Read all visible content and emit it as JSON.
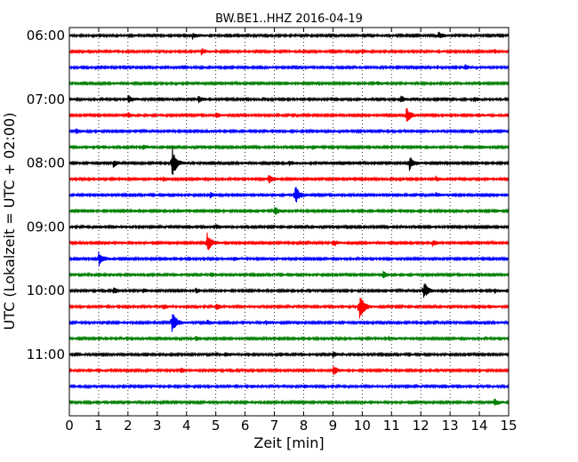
{
  "chart_data": {
    "type": "line",
    "title": "BW.BE1..HHZ 2016-04-19",
    "xlabel": "Zeit  [min]",
    "ylabel": "UTC (Lokalzeit = UTC + 02:00)",
    "xlim": [
      0,
      15
    ],
    "x_ticks": [
      "0",
      "1",
      "2",
      "3",
      "4",
      "5",
      "6",
      "7",
      "8",
      "9",
      "10",
      "11",
      "12",
      "13",
      "14",
      "15"
    ],
    "y_tick_labels": [
      {
        "label": "06:00",
        "trace_index": 0
      },
      {
        "label": "07:00",
        "trace_index": 4
      },
      {
        "label": "08:00",
        "trace_index": 8
      },
      {
        "label": "09:00",
        "trace_index": 12
      },
      {
        "label": "10:00",
        "trace_index": 16
      },
      {
        "label": "11:00",
        "trace_index": 20
      }
    ],
    "grid": "vertical dotted at each minute",
    "trace_colors": [
      "#000000",
      "#ff0000",
      "#0000ff",
      "#008000"
    ],
    "traces": [
      {
        "start": "06:00",
        "color": "#000000",
        "events": [
          {
            "t": 4.2,
            "amp": 0.25
          },
          {
            "t": 12.6,
            "amp": 0.3
          }
        ]
      },
      {
        "start": "06:15",
        "color": "#ff0000",
        "events": [
          {
            "t": 4.5,
            "amp": 0.25
          },
          {
            "t": 10.0,
            "amp": 0.15
          },
          {
            "t": 14.5,
            "amp": 0.15
          }
        ]
      },
      {
        "start": "06:30",
        "color": "#0000ff",
        "events": [
          {
            "t": 13.5,
            "amp": 0.2
          }
        ]
      },
      {
        "start": "06:45",
        "color": "#008000",
        "events": [
          {
            "t": 10.5,
            "amp": 0.15
          }
        ]
      },
      {
        "start": "07:00",
        "color": "#000000",
        "events": [
          {
            "t": 2.0,
            "amp": 0.35
          },
          {
            "t": 4.4,
            "amp": 0.3
          },
          {
            "t": 11.3,
            "amp": 0.3
          },
          {
            "t": 13.8,
            "amp": 0.2
          }
        ]
      },
      {
        "start": "07:15",
        "color": "#ff0000",
        "events": [
          {
            "t": 2.0,
            "amp": 0.2
          },
          {
            "t": 5.0,
            "amp": 0.2
          },
          {
            "t": 11.5,
            "amp": 0.75
          },
          {
            "t": 13.9,
            "amp": 0.15
          }
        ]
      },
      {
        "start": "07:30",
        "color": "#0000ff",
        "events": [
          {
            "t": 0.2,
            "amp": 0.25
          }
        ]
      },
      {
        "start": "07:45",
        "color": "#008000",
        "events": [
          {
            "t": 2.5,
            "amp": 0.2
          },
          {
            "t": 8.3,
            "amp": 0.15
          },
          {
            "t": 14.0,
            "amp": 0.15
          }
        ]
      },
      {
        "start": "08:00",
        "color": "#000000",
        "events": [
          {
            "t": 1.5,
            "amp": 0.3
          },
          {
            "t": 3.5,
            "amp": 1.5
          },
          {
            "t": 7.5,
            "amp": 0.2
          },
          {
            "t": 11.6,
            "amp": 0.7
          }
        ]
      },
      {
        "start": "08:15",
        "color": "#ff0000",
        "events": [
          {
            "t": 3.2,
            "amp": 0.2
          },
          {
            "t": 6.8,
            "amp": 0.35
          },
          {
            "t": 12.5,
            "amp": 0.2
          }
        ]
      },
      {
        "start": "08:30",
        "color": "#0000ff",
        "events": [
          {
            "t": 4.8,
            "amp": 0.25
          },
          {
            "t": 7.7,
            "amp": 0.9
          },
          {
            "t": 12.5,
            "amp": 0.2
          }
        ]
      },
      {
        "start": "08:45",
        "color": "#008000",
        "events": [
          {
            "t": 7.0,
            "amp": 0.35
          },
          {
            "t": 3.7,
            "amp": 0.15
          },
          {
            "t": 14.5,
            "amp": 0.15
          }
        ]
      },
      {
        "start": "09:00",
        "color": "#000000",
        "events": [
          {
            "t": 5.0,
            "amp": 0.15
          }
        ]
      },
      {
        "start": "09:15",
        "color": "#ff0000",
        "events": [
          {
            "t": 4.7,
            "amp": 0.85
          },
          {
            "t": 9.0,
            "amp": 0.3
          },
          {
            "t": 12.4,
            "amp": 0.25
          }
        ]
      },
      {
        "start": "09:30",
        "color": "#0000ff",
        "events": [
          {
            "t": 1.0,
            "amp": 0.65
          },
          {
            "t": 5.6,
            "amp": 0.15
          }
        ]
      },
      {
        "start": "09:45",
        "color": "#008000",
        "events": [
          {
            "t": 4.8,
            "amp": 0.2
          },
          {
            "t": 10.7,
            "amp": 0.3
          }
        ]
      },
      {
        "start": "10:00",
        "color": "#000000",
        "events": [
          {
            "t": 1.5,
            "amp": 0.25
          },
          {
            "t": 2.5,
            "amp": 0.2
          },
          {
            "t": 4.3,
            "amp": 0.2
          },
          {
            "t": 12.1,
            "amp": 0.8
          },
          {
            "t": 14.5,
            "amp": 0.2
          }
        ]
      },
      {
        "start": "10:15",
        "color": "#ff0000",
        "events": [
          {
            "t": 3.2,
            "amp": 0.2
          },
          {
            "t": 5.0,
            "amp": 0.3
          },
          {
            "t": 9.9,
            "amp": 1.35
          },
          {
            "t": 14.3,
            "amp": 0.15
          }
        ]
      },
      {
        "start": "10:30",
        "color": "#0000ff",
        "events": [
          {
            "t": 3.5,
            "amp": 1.1
          },
          {
            "t": 4.7,
            "amp": 0.2
          },
          {
            "t": 6.7,
            "amp": 0.15
          }
        ]
      },
      {
        "start": "10:45",
        "color": "#008000",
        "events": [
          {
            "t": 4.3,
            "amp": 0.25
          },
          {
            "t": 10.9,
            "amp": 0.15
          }
        ]
      },
      {
        "start": "11:00",
        "color": "#000000",
        "events": [
          {
            "t": 5.3,
            "amp": 0.2
          },
          {
            "t": 9.0,
            "amp": 0.25
          }
        ]
      },
      {
        "start": "11:15",
        "color": "#ff0000",
        "events": [
          {
            "t": 3.8,
            "amp": 0.25
          },
          {
            "t": 9.0,
            "amp": 0.45
          }
        ]
      },
      {
        "start": "11:30",
        "color": "#0000ff",
        "events": [
          {
            "t": 6.2,
            "amp": 0.15
          },
          {
            "t": 8.0,
            "amp": 0.15
          }
        ]
      },
      {
        "start": "11:45",
        "color": "#008000",
        "events": [
          {
            "t": 14.5,
            "amp": 0.35
          }
        ]
      }
    ]
  }
}
